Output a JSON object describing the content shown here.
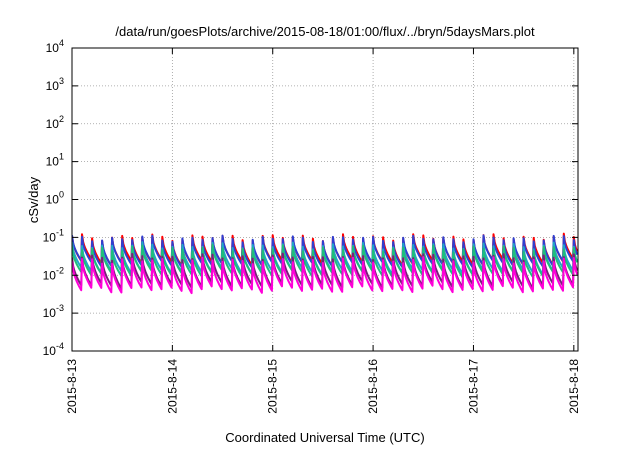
{
  "chart_data": {
    "type": "line",
    "title": "/data/run/goesPlots/archive/2015-08-18/01:00/flux/../bryn/5daysMars.plot",
    "xlabel": "Coordinated Universal Time (UTC)",
    "ylabel": "cSv/day",
    "yscale": "log",
    "ylim": [
      0.0001,
      10000
    ],
    "xlim": [
      "2015-08-13",
      "2015-08-18 01:00"
    ],
    "grid": true,
    "x_ticks": [
      "2015-8-13",
      "2015-8-14",
      "2015-8-15",
      "2015-8-16",
      "2015-8-17",
      "2015-8-18"
    ],
    "y_ticks": [
      {
        "value": 0.0001,
        "base": "10",
        "exp": "-4"
      },
      {
        "value": 0.001,
        "base": "10",
        "exp": "-3"
      },
      {
        "value": 0.01,
        "base": "10",
        "exp": "-2"
      },
      {
        "value": 0.1,
        "base": "10",
        "exp": "-1"
      },
      {
        "value": 1,
        "base": "10",
        "exp": "0"
      },
      {
        "value": 10,
        "base": "10",
        "exp": "1"
      },
      {
        "value": 100,
        "base": "10",
        "exp": "2"
      },
      {
        "value": 1000,
        "base": "10",
        "exp": "3"
      },
      {
        "value": 10000,
        "base": "10",
        "exp": "4"
      }
    ],
    "sawtooth_period_hours": 2.4,
    "series": [
      {
        "color": "#ff0000",
        "peak": 0.1,
        "trough": 0.022,
        "start_phase": 0.0
      },
      {
        "color": "#2f3fd0",
        "peak": 0.092,
        "trough": 0.02,
        "start_phase": 0.0
      },
      {
        "color": "#22a6c8",
        "peak": 0.06,
        "trough": 0.013,
        "start_phase": 0.0
      },
      {
        "color": "#1fbf7a",
        "peak": 0.05,
        "trough": 0.011,
        "start_phase": 0.0
      },
      {
        "color": "#7a1f7a",
        "peak": 0.03,
        "trough": 0.0055,
        "start_phase": 0.0
      },
      {
        "color": "#ff00d8",
        "peak": 0.024,
        "trough": 0.0042,
        "start_phase": 0.0
      }
    ]
  }
}
